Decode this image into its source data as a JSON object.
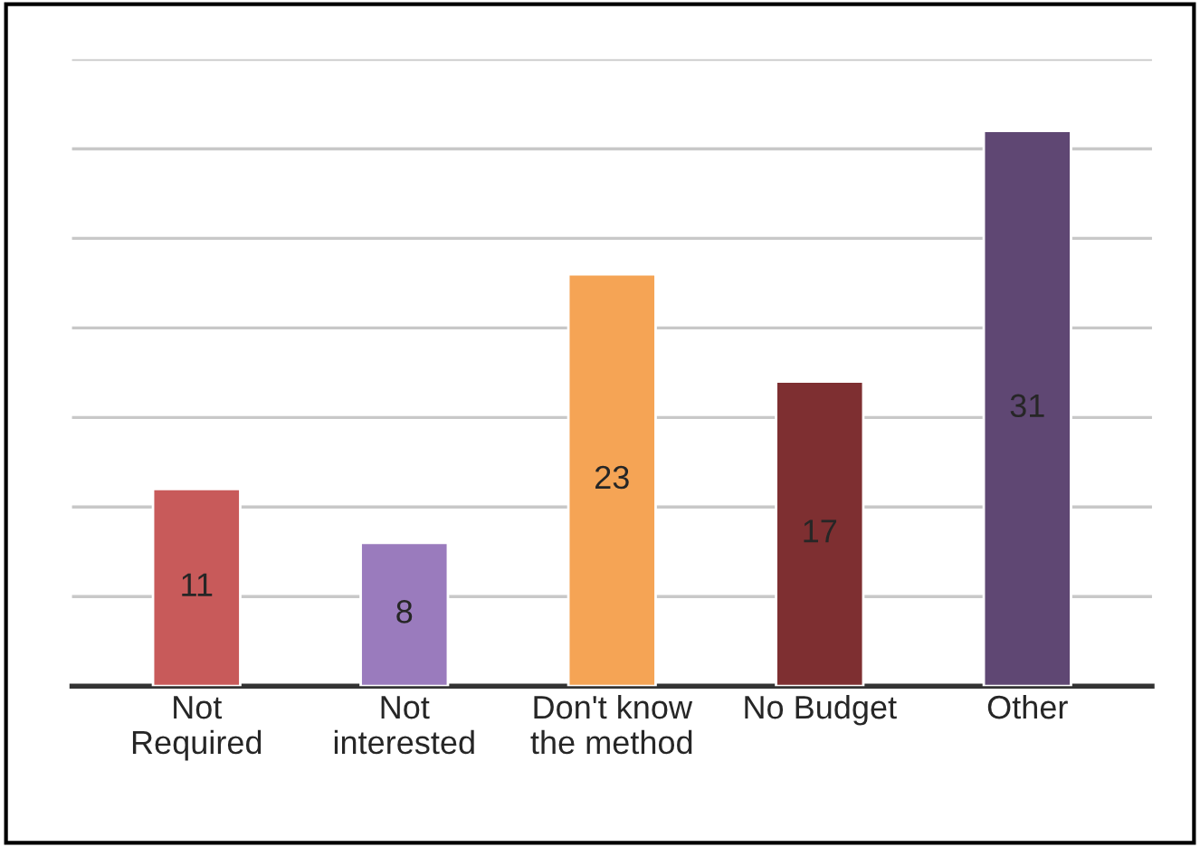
{
  "chart_data": {
    "type": "bar",
    "categories": [
      "Not\nRequired",
      "Not\ninterested",
      "Don't know\nthe method",
      "No Budget",
      "Other"
    ],
    "values": [
      11,
      8,
      23,
      17,
      31
    ],
    "colors": [
      "#c85a5a",
      "#9a7bbd",
      "#f5a455",
      "#7e2f31",
      "#5f4773"
    ],
    "ylim": [
      0,
      35
    ],
    "yticks": [
      {
        "value": 5,
        "label": null
      },
      {
        "value": 10,
        "label": null
      },
      {
        "value": 15,
        "label": null
      },
      {
        "value": 20,
        "label": null
      },
      {
        "value": 25,
        "label": null
      },
      {
        "value": 30,
        "label": null
      },
      {
        "value": 35,
        "label": null
      }
    ],
    "grid": "y",
    "data_labels": true,
    "tick_labels": "x"
  }
}
